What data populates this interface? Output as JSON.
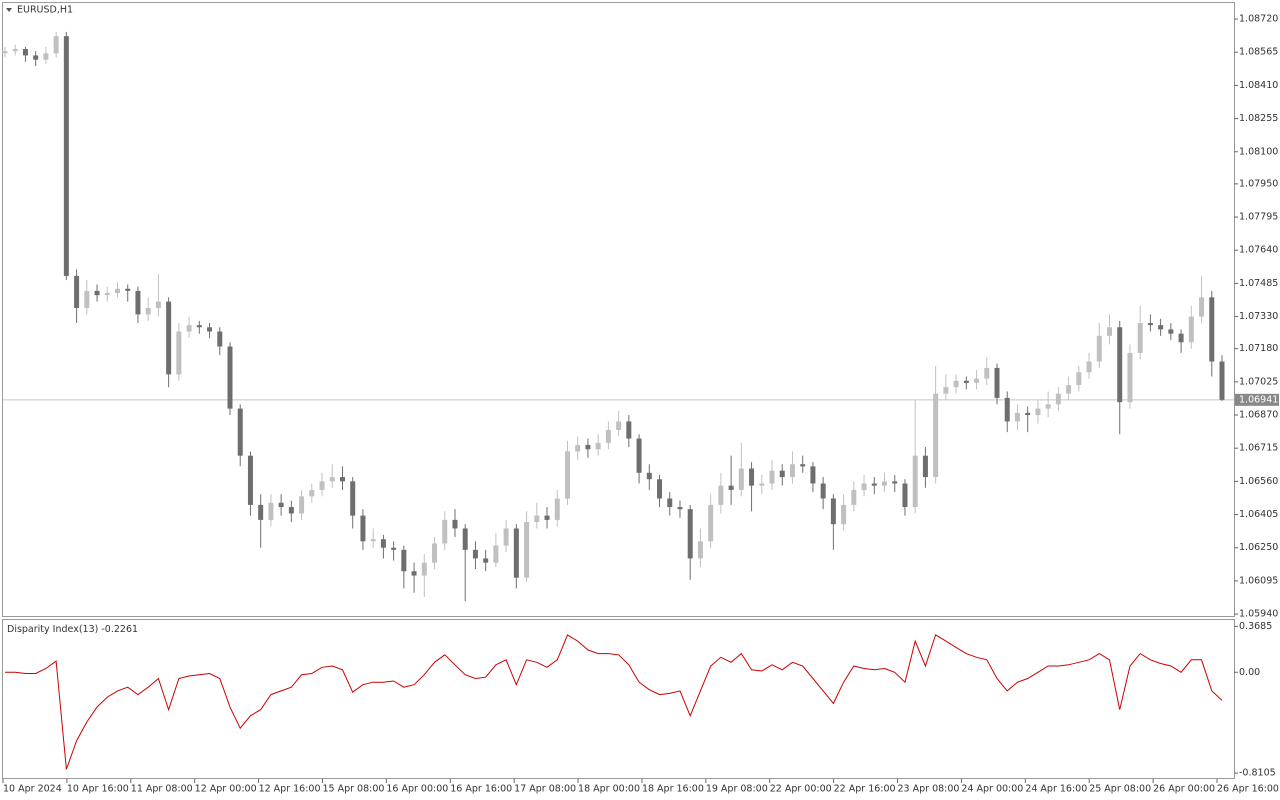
{
  "chart_data": [
    {
      "type": "candlestick",
      "title": "EURUSD,H1",
      "up_color": "#c0c0c0",
      "down_color": "#6e6e6e",
      "x_labels": [
        "10 Apr 2024",
        "10 Apr 16:00",
        "11 Apr 08:00",
        "12 Apr 00:00",
        "12 Apr 16:00",
        "15 Apr 08:00",
        "16 Apr 00:00",
        "16 Apr 16:00",
        "17 Apr 08:00",
        "18 Apr 00:00",
        "18 Apr 16:00",
        "19 Apr 08:00",
        "22 Apr 00:00",
        "22 Apr 16:00",
        "23 Apr 08:00",
        "24 Apr 00:00",
        "24 Apr 16:00",
        "25 Apr 08:00",
        "26 Apr 00:00",
        "26 Apr 16:00"
      ],
      "ylim": [
        1.05931,
        1.08795
      ],
      "yticks": [
        {
          "value": 1.0872,
          "label": "1.08720"
        },
        1.08565,
        {
          "value": 1.0841,
          "label": "1.08410"
        },
        1.08255,
        {
          "value": 1.081,
          "label": "1.08100"
        },
        {
          "value": 1.0795,
          "label": "1.07950"
        },
        1.07795,
        {
          "value": 1.0764,
          "label": "1.07640"
        },
        1.07485,
        {
          "value": 1.0733,
          "label": "1.07330"
        },
        {
          "value": 1.0718,
          "label": "1.07180"
        },
        1.07025,
        {
          "value": 1.0687,
          "label": "1.06870"
        },
        1.06715,
        {
          "value": 1.0656,
          "label": "1.06560"
        },
        1.06405,
        {
          "value": 1.0625,
          "label": "1.06250"
        },
        1.06095,
        {
          "value": 1.0594,
          "label": "1.05940"
        }
      ],
      "last_price": 1.06941,
      "ohlc": [
        [
          1.0856,
          1.0859,
          1.0854,
          1.0857
        ],
        [
          1.0857,
          1.086,
          1.0855,
          1.0858
        ],
        [
          1.0858,
          1.0859,
          1.0852,
          1.0855
        ],
        [
          1.0855,
          1.0857,
          1.085,
          1.0853
        ],
        [
          1.0853,
          1.0859,
          1.0851,
          1.0856
        ],
        [
          1.0856,
          1.0866,
          1.0854,
          1.0864
        ],
        [
          1.0864,
          1.0866,
          1.075,
          1.0752
        ],
        [
          1.0752,
          1.0755,
          1.073,
          1.0737
        ],
        [
          1.0737,
          1.075,
          1.0734,
          1.0745
        ],
        [
          1.0745,
          1.0748,
          1.074,
          1.0743
        ],
        [
          1.0743,
          1.0747,
          1.074,
          1.0744
        ],
        [
          1.0744,
          1.0749,
          1.0742,
          1.0746
        ],
        [
          1.0746,
          1.0748,
          1.074,
          1.0745
        ],
        [
          1.0745,
          1.0747,
          1.073,
          1.0734
        ],
        [
          1.0734,
          1.0742,
          1.0731,
          1.0737
        ],
        [
          1.0737,
          1.0753,
          1.0733,
          1.074
        ],
        [
          1.074,
          1.0742,
          1.07,
          1.0706
        ],
        [
          1.0706,
          1.073,
          1.0703,
          1.0726
        ],
        [
          1.0726,
          1.0733,
          1.0723,
          1.0729
        ],
        [
          1.0729,
          1.0731,
          1.0725,
          1.0728
        ],
        [
          1.0728,
          1.073,
          1.0723,
          1.0726
        ],
        [
          1.0726,
          1.0728,
          1.0715,
          1.0719
        ],
        [
          1.0719,
          1.0721,
          1.0687,
          1.069
        ],
        [
          1.069,
          1.0692,
          1.0663,
          1.0668
        ],
        [
          1.0668,
          1.067,
          1.064,
          1.0645
        ],
        [
          1.0645,
          1.065,
          1.0625,
          1.0638
        ],
        [
          1.0638,
          1.065,
          1.0635,
          1.0646
        ],
        [
          1.0646,
          1.065,
          1.064,
          1.0644
        ],
        [
          1.0644,
          1.0647,
          1.0637,
          1.0641
        ],
        [
          1.0641,
          1.0652,
          1.0638,
          1.0649
        ],
        [
          1.0649,
          1.0655,
          1.0646,
          1.0652
        ],
        [
          1.0652,
          1.066,
          1.0649,
          1.0656
        ],
        [
          1.0656,
          1.0664,
          1.0653,
          1.0658
        ],
        [
          1.0658,
          1.0663,
          1.0652,
          1.0656
        ],
        [
          1.0656,
          1.0658,
          1.0634,
          1.064
        ],
        [
          1.064,
          1.0643,
          1.0624,
          1.0628
        ],
        [
          1.0628,
          1.0634,
          1.0625,
          1.0629
        ],
        [
          1.0629,
          1.0631,
          1.062,
          1.0625
        ],
        [
          1.0625,
          1.0628,
          1.0619,
          1.0624
        ],
        [
          1.0624,
          1.0626,
          1.0606,
          1.0614
        ],
        [
          1.0614,
          1.0618,
          1.0604,
          1.0612
        ],
        [
          1.0612,
          1.0622,
          1.0602,
          1.0618
        ],
        [
          1.0618,
          1.063,
          1.0615,
          1.0627
        ],
        [
          1.0627,
          1.0642,
          1.0624,
          1.0638
        ],
        [
          1.0638,
          1.0643,
          1.063,
          1.0634
        ],
        [
          1.0634,
          1.0636,
          1.06,
          1.0624
        ],
        [
          1.0624,
          1.0628,
          1.0615,
          1.062
        ],
        [
          1.062,
          1.0624,
          1.0614,
          1.0618
        ],
        [
          1.0618,
          1.0632,
          1.0616,
          1.0626
        ],
        [
          1.0626,
          1.0638,
          1.0623,
          1.0634
        ],
        [
          1.0634,
          1.0636,
          1.0606,
          1.0611
        ],
        [
          1.0611,
          1.0642,
          1.0609,
          1.0637
        ],
        [
          1.0637,
          1.0646,
          1.0634,
          1.064
        ],
        [
          1.064,
          1.0644,
          1.0634,
          1.0638
        ],
        [
          1.0638,
          1.0652,
          1.0635,
          1.0648
        ],
        [
          1.0648,
          1.0675,
          1.0645,
          1.067
        ],
        [
          1.067,
          1.0677,
          1.0666,
          1.0673
        ],
        [
          1.0673,
          1.0676,
          1.0667,
          1.0671
        ],
        [
          1.0671,
          1.0678,
          1.0668,
          1.0674
        ],
        [
          1.0674,
          1.0684,
          1.0671,
          1.068
        ],
        [
          1.068,
          1.0689,
          1.0677,
          1.0684
        ],
        [
          1.0684,
          1.0687,
          1.0672,
          1.0676
        ],
        [
          1.0676,
          1.0678,
          1.0655,
          1.066
        ],
        [
          1.066,
          1.0664,
          1.0652,
          1.0657
        ],
        [
          1.0657,
          1.0659,
          1.0644,
          1.0648
        ],
        [
          1.0648,
          1.0651,
          1.064,
          1.0644
        ],
        [
          1.0644,
          1.0647,
          1.0639,
          1.0643
        ],
        [
          1.0643,
          1.0645,
          1.061,
          1.062
        ],
        [
          1.062,
          1.0634,
          1.0616,
          1.0628
        ],
        [
          1.0628,
          1.065,
          1.0625,
          1.0645
        ],
        [
          1.0645,
          1.066,
          1.0641,
          1.0654
        ],
        [
          1.0654,
          1.0668,
          1.0645,
          1.0652
        ],
        [
          1.0652,
          1.0674,
          1.0649,
          1.0662
        ],
        [
          1.0662,
          1.0665,
          1.0642,
          1.0654
        ],
        [
          1.0654,
          1.0659,
          1.065,
          1.0655
        ],
        [
          1.0655,
          1.0666,
          1.0652,
          1.0661
        ],
        [
          1.0661,
          1.0664,
          1.0654,
          1.0658
        ],
        [
          1.0658,
          1.067,
          1.0655,
          1.0664
        ],
        [
          1.0664,
          1.0668,
          1.066,
          1.0663
        ],
        [
          1.0663,
          1.0665,
          1.0651,
          1.0655
        ],
        [
          1.0655,
          1.0658,
          1.0643,
          1.0648
        ],
        [
          1.0648,
          1.065,
          1.0624,
          1.0636
        ],
        [
          1.0636,
          1.065,
          1.0633,
          1.0645
        ],
        [
          1.0645,
          1.0656,
          1.0642,
          1.0652
        ],
        [
          1.0652,
          1.0659,
          1.0649,
          1.0655
        ],
        [
          1.0655,
          1.0658,
          1.065,
          1.0654
        ],
        [
          1.0654,
          1.066,
          1.0651,
          1.0656
        ],
        [
          1.0656,
          1.0659,
          1.0651,
          1.0655
        ],
        [
          1.0655,
          1.0657,
          1.064,
          1.0644
        ],
        [
          1.0644,
          1.0694,
          1.0641,
          1.0668
        ],
        [
          1.0668,
          1.0672,
          1.0653,
          1.0658
        ],
        [
          1.0658,
          1.071,
          1.0655,
          1.0697
        ],
        [
          1.0697,
          1.0706,
          1.0694,
          1.07
        ],
        [
          1.07,
          1.0706,
          1.0697,
          1.0703
        ],
        [
          1.0703,
          1.0705,
          1.0699,
          1.0702
        ],
        [
          1.0702,
          1.0708,
          1.0699,
          1.0704
        ],
        [
          1.0704,
          1.0714,
          1.0701,
          1.0709
        ],
        [
          1.0709,
          1.0711,
          1.0692,
          1.0695
        ],
        [
          1.0695,
          1.0698,
          1.0679,
          1.0684
        ],
        [
          1.0684,
          1.0692,
          1.068,
          1.0688
        ],
        [
          1.0688,
          1.0691,
          1.0679,
          1.0687
        ],
        [
          1.0687,
          1.0694,
          1.0683,
          1.069
        ],
        [
          1.069,
          1.0698,
          1.0686,
          1.0692
        ],
        [
          1.0692,
          1.07,
          1.0689,
          1.0697
        ],
        [
          1.0697,
          1.0705,
          1.0694,
          1.0701
        ],
        [
          1.0701,
          1.071,
          1.0698,
          1.0707
        ],
        [
          1.0707,
          1.0716,
          1.0704,
          1.0712
        ],
        [
          1.0712,
          1.073,
          1.0709,
          1.0724
        ],
        [
          1.0724,
          1.0734,
          1.072,
          1.0728
        ],
        [
          1.0728,
          1.0731,
          1.0678,
          1.0693
        ],
        [
          1.0693,
          1.072,
          1.069,
          1.0716
        ],
        [
          1.0716,
          1.0738,
          1.0713,
          1.073
        ],
        [
          1.073,
          1.0734,
          1.0726,
          1.0729
        ],
        [
          1.0729,
          1.0732,
          1.0724,
          1.0727
        ],
        [
          1.0727,
          1.073,
          1.0722,
          1.0725
        ],
        [
          1.0725,
          1.0727,
          1.0716,
          1.0721
        ],
        [
          1.0721,
          1.0738,
          1.0718,
          1.0733
        ],
        [
          1.0733,
          1.0752,
          1.073,
          1.0742
        ],
        [
          1.0742,
          1.0745,
          1.0705,
          1.0712
        ],
        [
          1.0712,
          1.0715,
          1.06935,
          1.06941
        ]
      ]
    },
    {
      "type": "line",
      "title": "Disparity Index(13)",
      "color": "#cc0000",
      "ylim": [
        -0.85,
        0.42
      ],
      "yticks": [
        0.3685,
        {
          "value": 0,
          "label": "0.00"
        },
        -0.8105
      ],
      "values": [
        0,
        0,
        -0.01,
        -0.01,
        0.03,
        0.09,
        -0.78,
        -0.55,
        -0.4,
        -0.28,
        -0.2,
        -0.15,
        -0.12,
        -0.18,
        -0.12,
        -0.05,
        -0.3,
        -0.05,
        -0.03,
        -0.02,
        -0.01,
        -0.05,
        -0.28,
        -0.45,
        -0.35,
        -0.3,
        -0.18,
        -0.15,
        -0.12,
        -0.02,
        -0.01,
        0.04,
        0.05,
        0.02,
        -0.16,
        -0.1,
        -0.08,
        -0.08,
        -0.07,
        -0.12,
        -0.1,
        -0.02,
        0.08,
        0.14,
        0.06,
        -0.02,
        -0.05,
        -0.04,
        0.06,
        0.1,
        -0.1,
        0.1,
        0.08,
        0.04,
        0.1,
        0.3,
        0.25,
        0.18,
        0.15,
        0.15,
        0.14,
        0.06,
        -0.08,
        -0.14,
        -0.18,
        -0.17,
        -0.15,
        -0.35,
        -0.15,
        0.05,
        0.12,
        0.08,
        0.15,
        0.02,
        0.01,
        0.06,
        0.02,
        0.08,
        0.05,
        -0.05,
        -0.15,
        -0.25,
        -0.08,
        0.05,
        0.03,
        0.02,
        0.03,
        0,
        -0.08,
        0.25,
        0.05,
        0.3,
        0.25,
        0.2,
        0.15,
        0.12,
        0.1,
        -0.05,
        -0.15,
        -0.08,
        -0.05,
        0,
        0.05,
        0.05,
        0.06,
        0.08,
        0.1,
        0.15,
        0.1,
        -0.3,
        0.05,
        0.15,
        0.1,
        0.07,
        0.05,
        0,
        0.1,
        0.1,
        -0.15,
        -0.2261
      ]
    }
  ]
}
